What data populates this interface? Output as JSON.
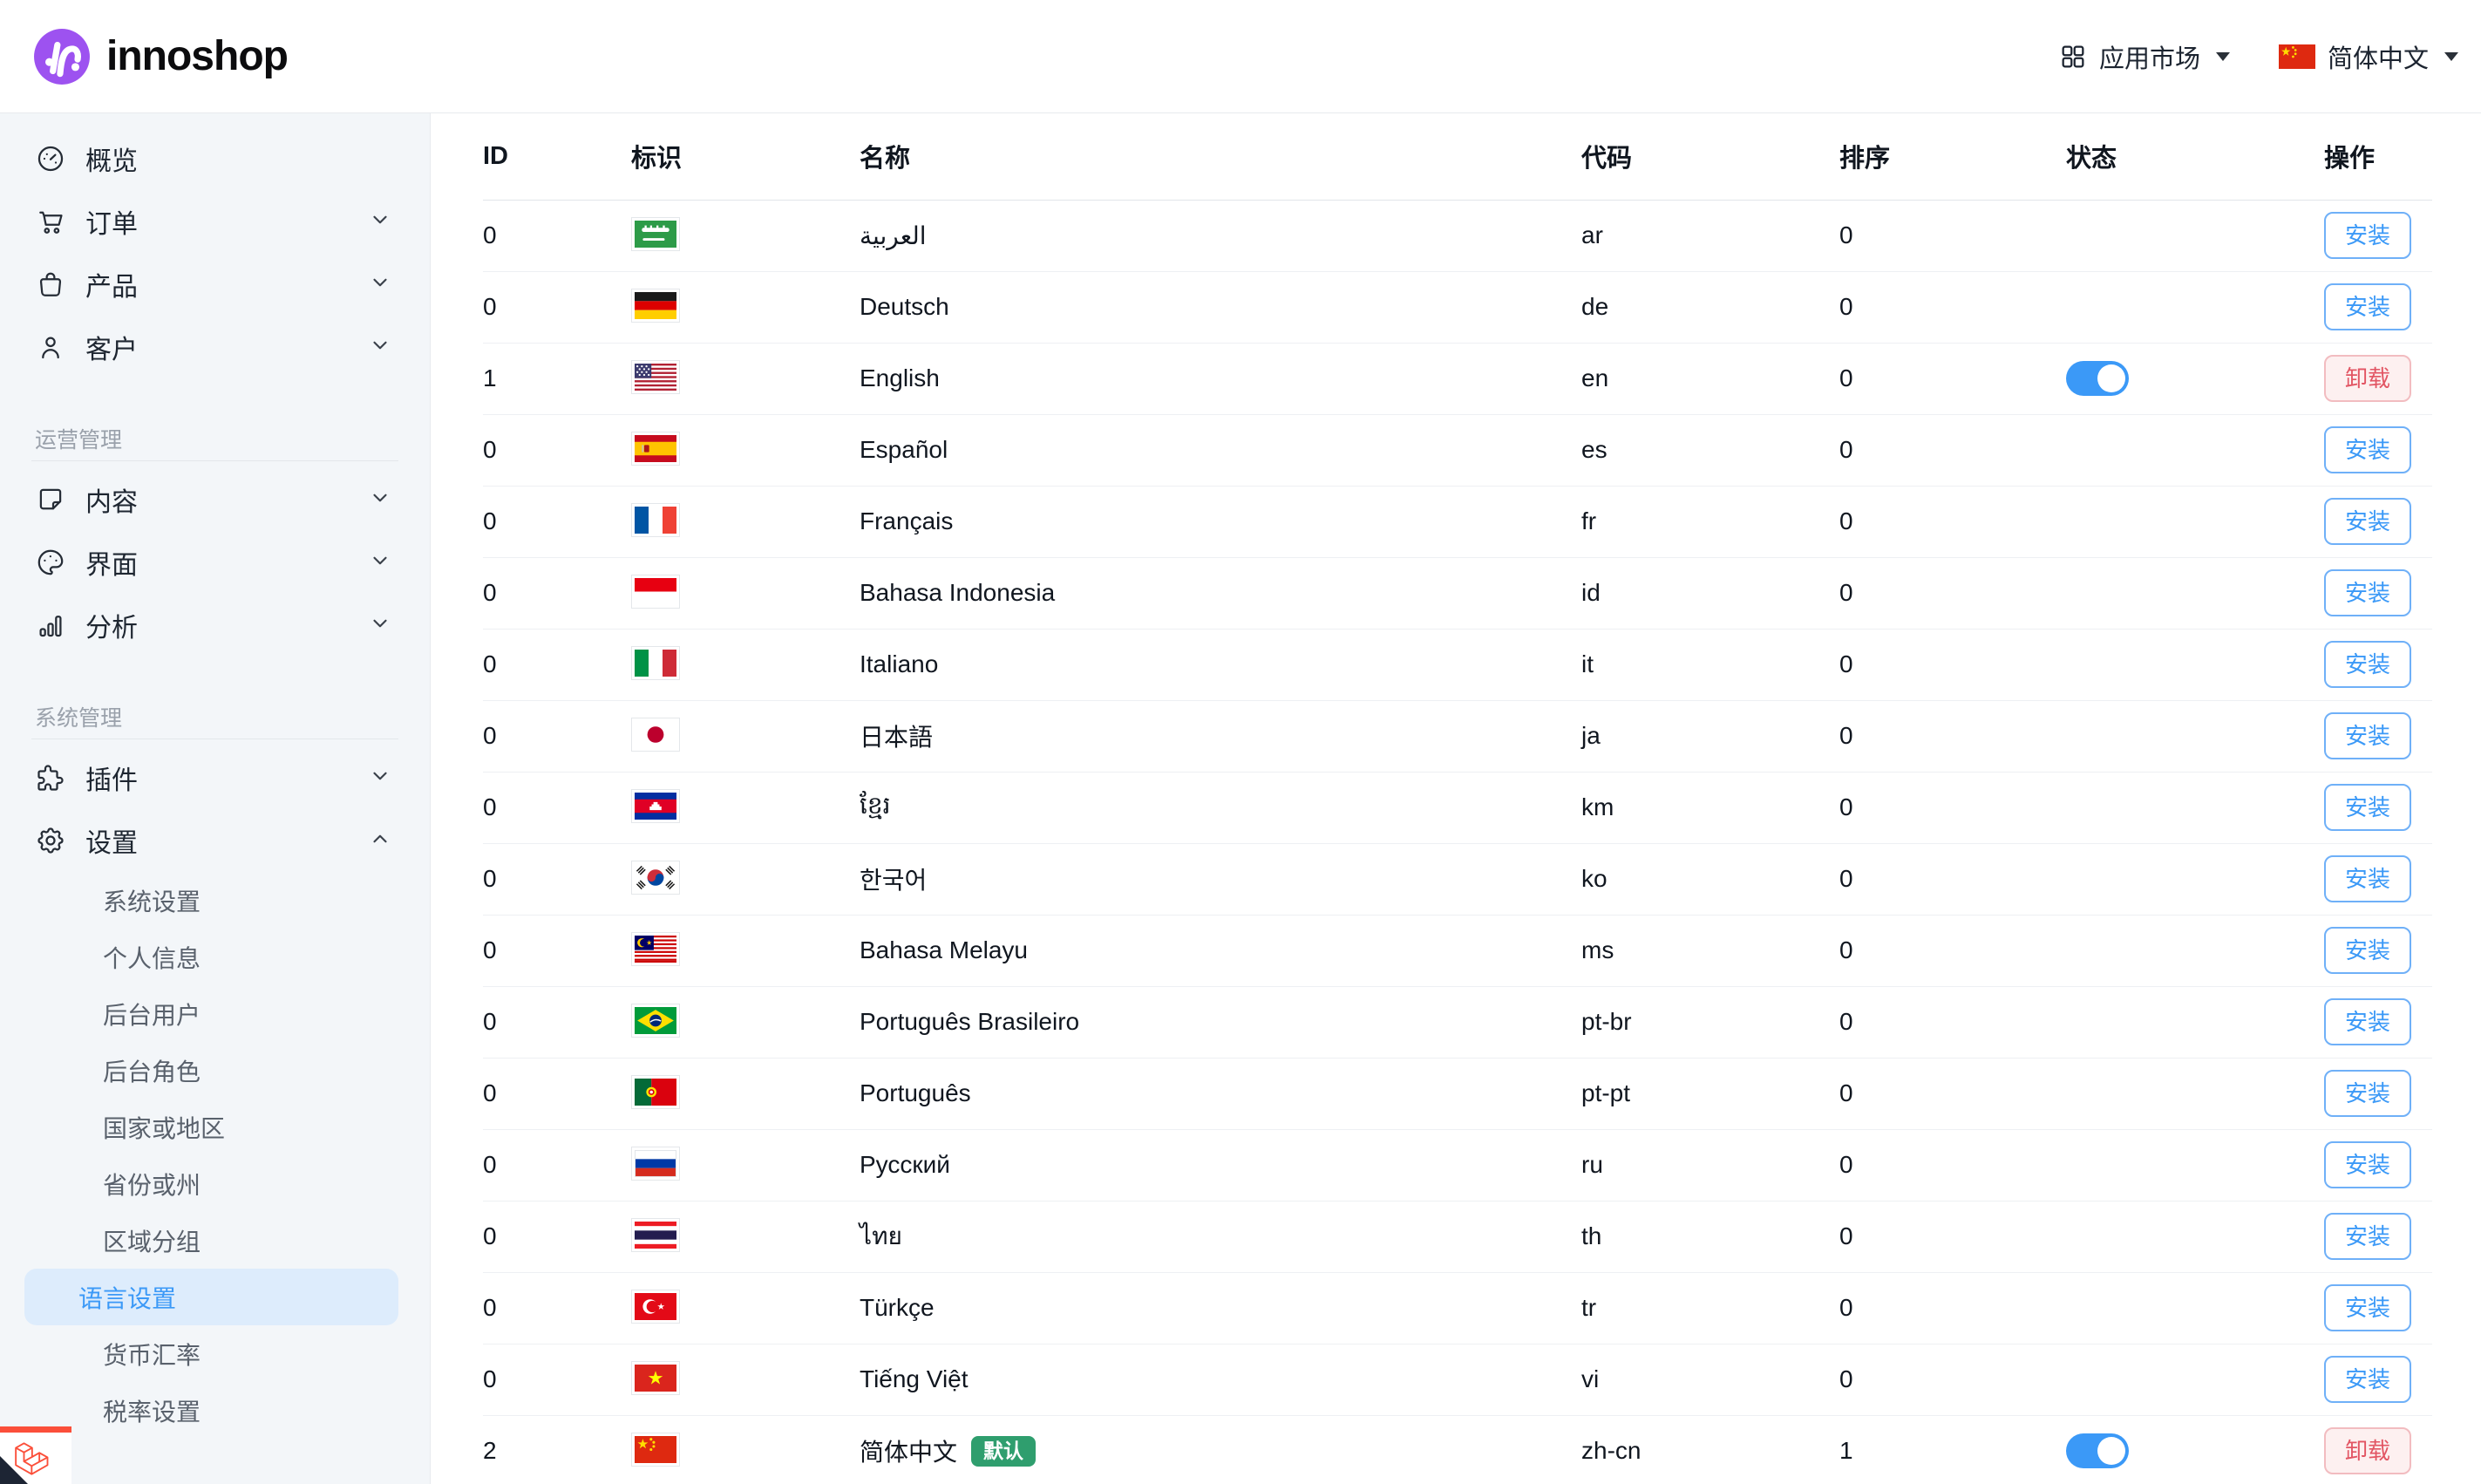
{
  "brand": {
    "name": "innoshop"
  },
  "topbar": {
    "app_market": "应用市场",
    "current_language": "简体中文",
    "current_language_flag": "cn"
  },
  "sidebar": {
    "groups": [
      {
        "section": null,
        "items": [
          {
            "name": "overview",
            "label": "概览",
            "icon": "gauge",
            "chevron": null
          },
          {
            "name": "orders",
            "label": "订单",
            "icon": "cart",
            "chevron": "down"
          },
          {
            "name": "products",
            "label": "产品",
            "icon": "bag",
            "chevron": "down"
          },
          {
            "name": "customers",
            "label": "客户",
            "icon": "user",
            "chevron": "down"
          }
        ]
      },
      {
        "section": "运营管理",
        "items": [
          {
            "name": "content",
            "label": "内容",
            "icon": "note",
            "chevron": "down"
          },
          {
            "name": "theme",
            "label": "界面",
            "icon": "palette",
            "chevron": "down"
          },
          {
            "name": "analytics",
            "label": "分析",
            "icon": "chart",
            "chevron": "down"
          }
        ]
      },
      {
        "section": "系统管理",
        "items": [
          {
            "name": "plugins",
            "label": "插件",
            "icon": "puzzle",
            "chevron": "down"
          },
          {
            "name": "settings",
            "label": "设置",
            "icon": "gear",
            "chevron": "up",
            "submenu": [
              {
                "name": "system-settings",
                "label": "系统设置",
                "active": false
              },
              {
                "name": "account-info",
                "label": "个人信息",
                "active": false
              },
              {
                "name": "admin-users",
                "label": "后台用户",
                "active": false
              },
              {
                "name": "admin-roles",
                "label": "后台角色",
                "active": false
              },
              {
                "name": "countries",
                "label": "国家或地区",
                "active": false
              },
              {
                "name": "provinces",
                "label": "省份或州",
                "active": false
              },
              {
                "name": "zone-groups",
                "label": "区域分组",
                "active": false
              },
              {
                "name": "language-settings",
                "label": "语言设置",
                "active": true
              },
              {
                "name": "currency-rates",
                "label": "货币汇率",
                "active": false
              },
              {
                "name": "tax-settings",
                "label": "税率设置",
                "active": false
              }
            ]
          }
        ]
      }
    ]
  },
  "table": {
    "headers": [
      "ID",
      "标识",
      "名称",
      "代码",
      "排序",
      "状态",
      "操作"
    ],
    "install_label": "安装",
    "uninstall_label": "卸载",
    "default_badge": "默认",
    "rows": [
      {
        "id": "0",
        "flag": "sa",
        "name": "العربية",
        "code": "ar",
        "sort": "0",
        "enabled": false,
        "default": false,
        "action": "install"
      },
      {
        "id": "0",
        "flag": "de",
        "name": "Deutsch",
        "code": "de",
        "sort": "0",
        "enabled": false,
        "default": false,
        "action": "install"
      },
      {
        "id": "1",
        "flag": "us",
        "name": "English",
        "code": "en",
        "sort": "0",
        "enabled": true,
        "default": false,
        "action": "uninstall"
      },
      {
        "id": "0",
        "flag": "es",
        "name": "Español",
        "code": "es",
        "sort": "0",
        "enabled": false,
        "default": false,
        "action": "install"
      },
      {
        "id": "0",
        "flag": "fr",
        "name": "Français",
        "code": "fr",
        "sort": "0",
        "enabled": false,
        "default": false,
        "action": "install"
      },
      {
        "id": "0",
        "flag": "id",
        "name": "Bahasa Indonesia",
        "code": "id",
        "sort": "0",
        "enabled": false,
        "default": false,
        "action": "install"
      },
      {
        "id": "0",
        "flag": "it",
        "name": "Italiano",
        "code": "it",
        "sort": "0",
        "enabled": false,
        "default": false,
        "action": "install"
      },
      {
        "id": "0",
        "flag": "jp",
        "name": "日本語",
        "code": "ja",
        "sort": "0",
        "enabled": false,
        "default": false,
        "action": "install"
      },
      {
        "id": "0",
        "flag": "kh",
        "name": "ខ្មែរ",
        "code": "km",
        "sort": "0",
        "enabled": false,
        "default": false,
        "action": "install"
      },
      {
        "id": "0",
        "flag": "kr",
        "name": "한국어",
        "code": "ko",
        "sort": "0",
        "enabled": false,
        "default": false,
        "action": "install"
      },
      {
        "id": "0",
        "flag": "my",
        "name": "Bahasa Melayu",
        "code": "ms",
        "sort": "0",
        "enabled": false,
        "default": false,
        "action": "install"
      },
      {
        "id": "0",
        "flag": "br",
        "name": "Português Brasileiro",
        "code": "pt-br",
        "sort": "0",
        "enabled": false,
        "default": false,
        "action": "install"
      },
      {
        "id": "0",
        "flag": "pt",
        "name": "Português",
        "code": "pt-pt",
        "sort": "0",
        "enabled": false,
        "default": false,
        "action": "install"
      },
      {
        "id": "0",
        "flag": "ru",
        "name": "Русский",
        "code": "ru",
        "sort": "0",
        "enabled": false,
        "default": false,
        "action": "install"
      },
      {
        "id": "0",
        "flag": "th",
        "name": "ไทย",
        "code": "th",
        "sort": "0",
        "enabled": false,
        "default": false,
        "action": "install"
      },
      {
        "id": "0",
        "flag": "tr",
        "name": "Türkçe",
        "code": "tr",
        "sort": "0",
        "enabled": false,
        "default": false,
        "action": "install"
      },
      {
        "id": "0",
        "flag": "vn",
        "name": "Tiếng Việt",
        "code": "vi",
        "sort": "0",
        "enabled": false,
        "default": false,
        "action": "install"
      },
      {
        "id": "2",
        "flag": "cn",
        "name": "简体中文",
        "code": "zh-cn",
        "sort": "1",
        "enabled": true,
        "default": true,
        "action": "uninstall"
      }
    ]
  },
  "colors": {
    "accent": "#3b99f7",
    "danger": "#e25563",
    "badge_green": "#2f9e6e",
    "brand_purple": "#9d52f0",
    "debugbar_red": "#fb4f3a"
  }
}
